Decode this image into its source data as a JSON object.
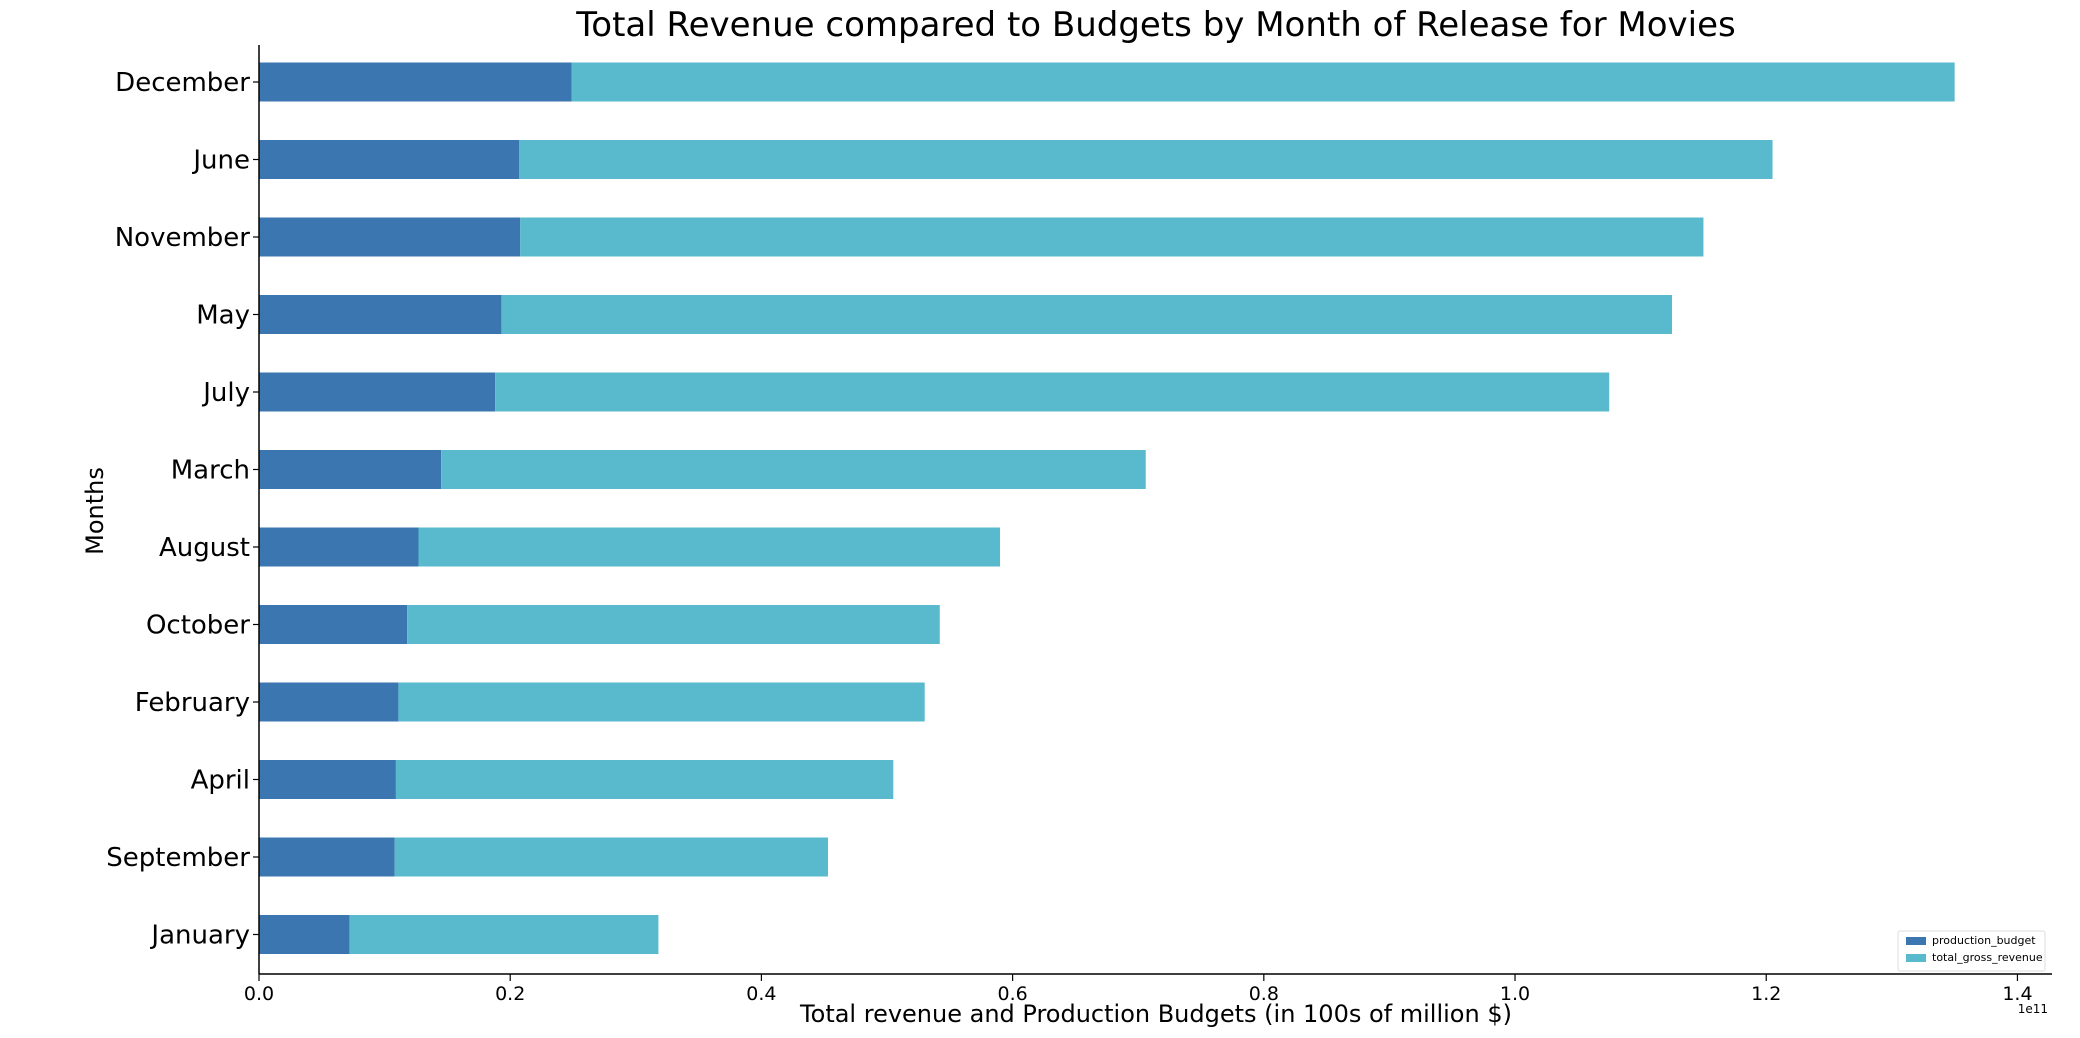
{
  "chart_data": {
    "type": "bar",
    "orientation": "horizontal",
    "stacked": true,
    "title": "Total Revenue compared to Budgets by Month of Release for Movies",
    "xlabel": "Total revenue and Production Budgets (in 100s of million $)",
    "ylabel": "Months",
    "x_offset_label": "1e11",
    "xlim": [
      0,
      1.41
    ],
    "xticks": [
      "0.0",
      "0.2",
      "0.4",
      "0.6",
      "0.8",
      "1.0",
      "1.2",
      "1.4"
    ],
    "categories": [
      "December",
      "June",
      "November",
      "May",
      "July",
      "March",
      "August",
      "October",
      "February",
      "April",
      "September",
      "January"
    ],
    "series": [
      {
        "name": "production_budget",
        "color": "#3b76b0",
        "values": [
          0.249,
          0.207,
          0.208,
          0.193,
          0.188,
          0.145,
          0.127,
          0.118,
          0.111,
          0.109,
          0.108,
          0.072
        ]
      },
      {
        "name": "total_gross_revenue",
        "color": "#58bacc",
        "values": [
          1.101,
          0.998,
          0.942,
          0.932,
          0.887,
          0.561,
          0.463,
          0.424,
          0.419,
          0.396,
          0.345,
          0.246
        ]
      }
    ],
    "legend_position": "bottom-right",
    "grid": false
  }
}
